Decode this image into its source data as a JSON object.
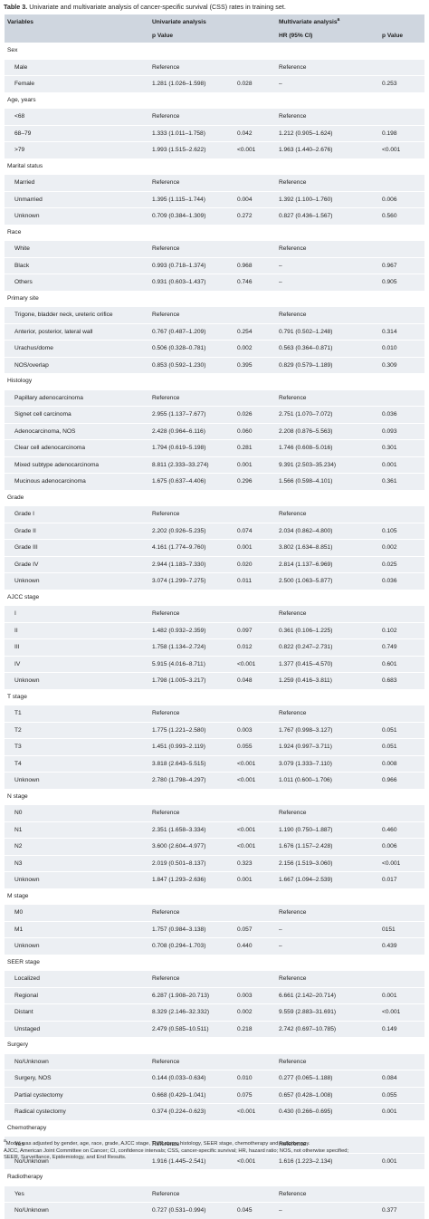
{
  "caption": {
    "label": "Table 3.",
    "text": " Univariate and multivariate analysis of cancer-specific survival (CSS) rates in training set."
  },
  "headers": {
    "variables": "Variables",
    "univariate": "Univariate analysis",
    "multivariate": "Multivariate analysis",
    "multivariate_sup": "a",
    "p_value": "p Value",
    "hr": "HR (95% CI)",
    "p_value2": "p Value"
  },
  "rows": [
    {
      "type": "sec",
      "var": "Sex"
    },
    {
      "type": "row",
      "var": "Male",
      "u_hr": "Reference",
      "u_p": "",
      "m_hr": "Reference",
      "m_p": ""
    },
    {
      "type": "row",
      "var": "Female",
      "u_hr": "1.281 (1.026–1.598)",
      "u_p": "0.028",
      "m_hr": "–",
      "m_p": "0.253"
    },
    {
      "type": "sec",
      "var": "Age, years"
    },
    {
      "type": "row",
      "var": "<68",
      "u_hr": "Reference",
      "u_p": "",
      "m_hr": "Reference",
      "m_p": ""
    },
    {
      "type": "row",
      "var": "68–79",
      "u_hr": "1.333 (1.011–1.758)",
      "u_p": "0.042",
      "m_hr": "1.212 (0.905–1.624)",
      "m_p": "0.198"
    },
    {
      "type": "row",
      "var": ">79",
      "u_hr": "1.993 (1.515–2.622)",
      "u_p": "<0.001",
      "m_hr": "1.963 (1.440–2.676)",
      "m_p": "<0.001"
    },
    {
      "type": "sec",
      "var": "Marital status"
    },
    {
      "type": "row",
      "var": "Married",
      "u_hr": "Reference",
      "u_p": "",
      "m_hr": "Reference",
      "m_p": ""
    },
    {
      "type": "row",
      "var": "Unmarried",
      "u_hr": "1.395 (1.115–1.744)",
      "u_p": "0.004",
      "m_hr": "1.392 (1.100–1.760)",
      "m_p": "0.006"
    },
    {
      "type": "row",
      "var": "Unknown",
      "u_hr": "0.709 (0.384–1.309)",
      "u_p": "0.272",
      "m_hr": "0.827 (0.436–1.567)",
      "m_p": "0.560"
    },
    {
      "type": "sec",
      "var": "Race"
    },
    {
      "type": "row",
      "var": "White",
      "u_hr": "Reference",
      "u_p": "",
      "m_hr": "Reference",
      "m_p": ""
    },
    {
      "type": "row",
      "var": "Black",
      "u_hr": "0.993 (0.718–1.374)",
      "u_p": "0.968",
      "m_hr": "–",
      "m_p": "0.967"
    },
    {
      "type": "row",
      "var": "Others",
      "u_hr": "0.931 (0.603–1.437)",
      "u_p": "0.746",
      "m_hr": "–",
      "m_p": "0.905"
    },
    {
      "type": "sec",
      "var": "Primary site"
    },
    {
      "type": "row",
      "var": "Trigone, bladder neck, ureteric orifice",
      "u_hr": "Reference",
      "u_p": "",
      "m_hr": "Reference",
      "m_p": ""
    },
    {
      "type": "row",
      "var": "Anterior, posterior, lateral wall",
      "u_hr": "0.767 (0.487–1.209)",
      "u_p": "0.254",
      "m_hr": "0.791 (0.502–1.248)",
      "m_p": "0.314"
    },
    {
      "type": "row",
      "var": "Urachus/dome",
      "u_hr": "0.506 (0.328–0.781)",
      "u_p": "0.002",
      "m_hr": "0.563 (0.364–0.871)",
      "m_p": "0.010"
    },
    {
      "type": "row",
      "var": "NOS/overlap",
      "u_hr": "0.853 (0.592–1.230)",
      "u_p": "0.395",
      "m_hr": "0.829 (0.579–1.189)",
      "m_p": "0.309"
    },
    {
      "type": "sec",
      "var": "Histology"
    },
    {
      "type": "row",
      "var": "Papillary adenocarcinoma",
      "u_hr": "Reference",
      "u_p": "",
      "m_hr": "Reference",
      "m_p": ""
    },
    {
      "type": "row",
      "var": "Signet cell carcinoma",
      "u_hr": "2.955 (1.137–7.677)",
      "u_p": "0.026",
      "m_hr": "2.751 (1.070–7.072)",
      "m_p": "0.036"
    },
    {
      "type": "row",
      "var": "Adenocarcinoma, NOS",
      "u_hr": "2.428 (0.964–6.116)",
      "u_p": "0.060",
      "m_hr": "2.208 (0.876–5.563)",
      "m_p": "0.093"
    },
    {
      "type": "row",
      "var": "Clear cell adenocarcinoma",
      "u_hr": "1.794 (0.619–5.198)",
      "u_p": "0.281",
      "m_hr": "1.746 (0.608–5.016)",
      "m_p": "0.301"
    },
    {
      "type": "row",
      "var": "Mixed subtype adenocarcinoma",
      "u_hr": "8.811 (2.333–33.274)",
      "u_p": "0.001",
      "m_hr": "9.391 (2.503–35.234)",
      "m_p": "0.001"
    },
    {
      "type": "row",
      "var": "Mucinous adenocarcinoma",
      "u_hr": "1.675 (0.637–4.406)",
      "u_p": "0.296",
      "m_hr": "1.566 (0.598–4.101)",
      "m_p": "0.361"
    },
    {
      "type": "sec",
      "var": "Grade"
    },
    {
      "type": "row",
      "var": "Grade I",
      "u_hr": "Reference",
      "u_p": "",
      "m_hr": "Reference",
      "m_p": ""
    },
    {
      "type": "row",
      "var": "Grade II",
      "u_hr": "2.202 (0.926–5.235)",
      "u_p": "0.074",
      "m_hr": "2.034 (0.862–4.800)",
      "m_p": "0.105"
    },
    {
      "type": "row",
      "var": "Grade III",
      "u_hr": "4.161 (1.774–9.760)",
      "u_p": "0.001",
      "m_hr": "3.802 (1.634–8.851)",
      "m_p": "0.002"
    },
    {
      "type": "row",
      "var": "Grade IV",
      "u_hr": "2.944 (1.183–7.330)",
      "u_p": "0.020",
      "m_hr": "2.814 (1.137–6.969)",
      "m_p": "0.025"
    },
    {
      "type": "row",
      "var": "Unknown",
      "u_hr": "3.074 (1.299–7.275)",
      "u_p": "0.011",
      "m_hr": "2.500 (1.063–5.877)",
      "m_p": "0.036"
    },
    {
      "type": "sec",
      "var": "AJCC stage"
    },
    {
      "type": "row",
      "var": "I",
      "u_hr": "Reference",
      "u_p": "",
      "m_hr": "Reference",
      "m_p": ""
    },
    {
      "type": "row",
      "var": "II",
      "u_hr": "1.482 (0.932–2.359)",
      "u_p": "0.097",
      "m_hr": "0.361 (0.106–1.225)",
      "m_p": "0.102"
    },
    {
      "type": "row",
      "var": "III",
      "u_hr": "1.758 (1.134–2.724)",
      "u_p": "0.012",
      "m_hr": "0.822 (0.247–2.731)",
      "m_p": "0.749"
    },
    {
      "type": "row",
      "var": "IV",
      "u_hr": "5.915 (4.016–8.711)",
      "u_p": "<0.001",
      "m_hr": "1.377 (0.415–4.570)",
      "m_p": "0.601"
    },
    {
      "type": "row",
      "var": "Unknown",
      "u_hr": "1.798 (1.005–3.217)",
      "u_p": "0.048",
      "m_hr": "1.259 (0.416–3.811)",
      "m_p": "0.683"
    },
    {
      "type": "sec",
      "var": "T stage"
    },
    {
      "type": "row",
      "var": "T1",
      "u_hr": "Reference",
      "u_p": "",
      "m_hr": "Reference",
      "m_p": ""
    },
    {
      "type": "row",
      "var": "T2",
      "u_hr": "1.775 (1.221–2.580)",
      "u_p": "0.003",
      "m_hr": "1.767 (0.998–3.127)",
      "m_p": "0.051"
    },
    {
      "type": "row",
      "var": "T3",
      "u_hr": "1.451 (0.993–2.119)",
      "u_p": "0.055",
      "m_hr": "1.924 (0.997–3.711)",
      "m_p": "0.051"
    },
    {
      "type": "row",
      "var": "T4",
      "u_hr": "3.818 (2.643–5.515)",
      "u_p": "<0.001",
      "m_hr": "3.079 (1.333–7.110)",
      "m_p": "0.008"
    },
    {
      "type": "row",
      "var": "Unknown",
      "u_hr": "2.780 (1.798–4.297)",
      "u_p": "<0.001",
      "m_hr": "1.011 (0.600–1.706)",
      "m_p": "0.966"
    },
    {
      "type": "sec",
      "var": "N stage"
    },
    {
      "type": "row",
      "var": "N0",
      "u_hr": "Reference",
      "u_p": "",
      "m_hr": "Reference",
      "m_p": ""
    },
    {
      "type": "row",
      "var": "N1",
      "u_hr": "2.351 (1.658–3.334)",
      "u_p": "<0.001",
      "m_hr": "1.190 (0.750–1.887)",
      "m_p": "0.460"
    },
    {
      "type": "row",
      "var": "N2",
      "u_hr": "3.600 (2.604–4.977)",
      "u_p": "<0.001",
      "m_hr": "1.676 (1.157–2.428)",
      "m_p": "0.006"
    },
    {
      "type": "row",
      "var": "N3",
      "u_hr": "2.019 (0.501–8.137)",
      "u_p": "0.323",
      "m_hr": "2.156 (1.519–3.060)",
      "m_p": "<0.001"
    },
    {
      "type": "row",
      "var": "Unknown",
      "u_hr": "1.847 (1.293–2.636)",
      "u_p": "0.001",
      "m_hr": "1.667 (1.094–2.539)",
      "m_p": "0.017"
    },
    {
      "type": "sec",
      "var": "M stage"
    },
    {
      "type": "row",
      "var": "M0",
      "u_hr": "Reference",
      "u_p": "",
      "m_hr": "Reference",
      "m_p": ""
    },
    {
      "type": "row",
      "var": "M1",
      "u_hr": "1.757 (0.984–3.138)",
      "u_p": "0.057",
      "m_hr": "–",
      "m_p": "0151"
    },
    {
      "type": "row",
      "var": "Unknown",
      "u_hr": "0.708 (0.294–1.703)",
      "u_p": "0.440",
      "m_hr": "–",
      "m_p": "0.439"
    },
    {
      "type": "sec",
      "var": "SEER stage"
    },
    {
      "type": "row",
      "var": "Localized",
      "u_hr": "Reference",
      "u_p": "",
      "m_hr": "Reference",
      "m_p": ""
    },
    {
      "type": "row",
      "var": "Regional",
      "u_hr": "6.287 (1.908–20.713)",
      "u_p": "0.003",
      "m_hr": "6.661 (2.142–20.714)",
      "m_p": "0.001"
    },
    {
      "type": "row",
      "var": "Distant",
      "u_hr": "8.329 (2.146–32.332)",
      "u_p": "0.002",
      "m_hr": "9.559 (2.883–31.691)",
      "m_p": "<0.001"
    },
    {
      "type": "row",
      "var": "Unstaged",
      "u_hr": "2.479 (0.585–10.511)",
      "u_p": "0.218",
      "m_hr": "2.742 (0.697–10.785)",
      "m_p": "0.149"
    },
    {
      "type": "sec",
      "var": "Surgery"
    },
    {
      "type": "row",
      "var": "No/Unknown",
      "u_hr": "Reference",
      "u_p": "",
      "m_hr": "Reference",
      "m_p": ""
    },
    {
      "type": "row",
      "var": "Surgery, NOS",
      "u_hr": "0.144 (0.033–0.634)",
      "u_p": "0.010",
      "m_hr": "0.277 (0.065–1.188)",
      "m_p": "0.084"
    },
    {
      "type": "row",
      "var": "Partial cystectomy",
      "u_hr": "0.668 (0.429–1.041)",
      "u_p": "0.075",
      "m_hr": "0.657 (0.428–1.008)",
      "m_p": "0.055"
    },
    {
      "type": "row",
      "var": "Radical cystectomy",
      "u_hr": "0.374 (0.224–0.623)",
      "u_p": "<0.001",
      "m_hr": "0.430 (0.266–0.695)",
      "m_p": "0.001"
    },
    {
      "type": "sec",
      "var": "Chemotherapy"
    },
    {
      "type": "row",
      "var": "Yes",
      "u_hr": "Reference",
      "u_p": "",
      "m_hr": "Reference",
      "m_p": ""
    },
    {
      "type": "row",
      "var": "No/Unknown",
      "u_hr": "1.916 (1.445–2.541)",
      "u_p": "<0.001",
      "m_hr": "1.616 (1.223–2.134)",
      "m_p": "0.001"
    },
    {
      "type": "sec",
      "var": "Radiotherapy"
    },
    {
      "type": "row",
      "var": "Yes",
      "u_hr": "Reference",
      "u_p": "",
      "m_hr": "Reference",
      "m_p": ""
    },
    {
      "type": "row",
      "var": "No/Unknown",
      "u_hr": "0.727 (0.531–0.994)",
      "u_p": "0.045",
      "m_hr": "–",
      "m_p": "0.377"
    }
  ],
  "footnote": {
    "sup": "a",
    "line1": "Model was adjusted by gender, age, race, grade, AJCC stage, TNM stage, histology, SEER stage, chemotherapy and radiotherapy.",
    "line2": "AJCC, American Joint Committee on Cancer; CI, confidence intervals; CSS, cancer-specific survival; HR, hazard ratio; NOS, not otherwise specified;",
    "line3": "SEER, Surveillance, Epidemiology, and End Results."
  }
}
